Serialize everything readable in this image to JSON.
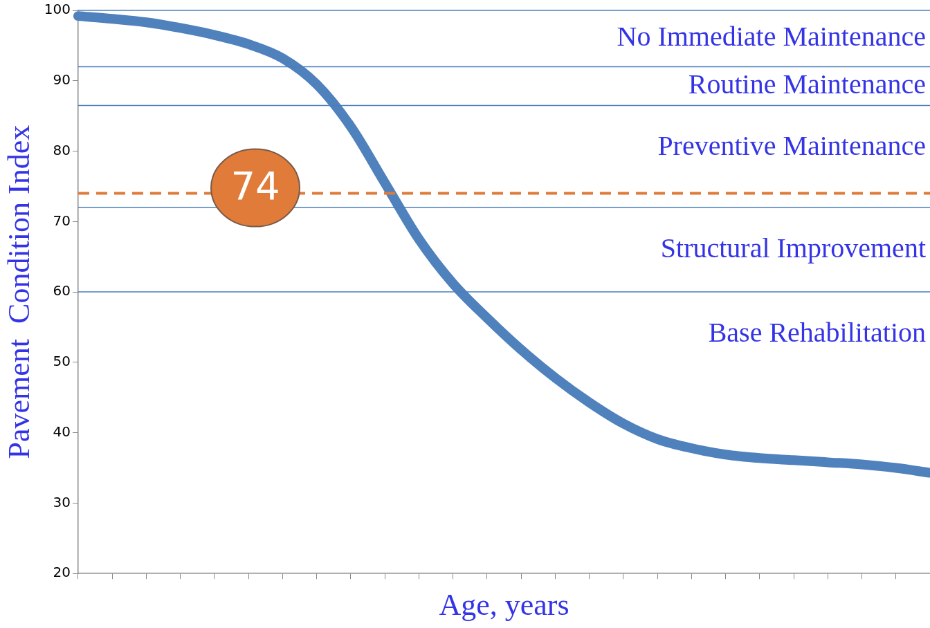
{
  "chart_data": {
    "type": "line",
    "xlabel": "Age, years",
    "ylabel": "Pavement  Condition Index",
    "categories": [
      null,
      null,
      null,
      null,
      null,
      null,
      null,
      null,
      null,
      null,
      null,
      null,
      null,
      null,
      null,
      null,
      null,
      null,
      null,
      null,
      null,
      null,
      null,
      null,
      null,
      null
    ],
    "series": [
      {
        "color": "#4f81bd",
        "values": [
          99.2,
          98.8,
          98.3,
          97.5,
          96.5,
          95.2,
          93.2,
          89.5,
          83.5,
          75.5,
          67.5,
          61.2,
          56.3,
          51.8,
          47.8,
          44.3,
          41.3,
          39.1,
          37.8,
          36.9,
          36.4,
          36.1,
          35.8,
          35.5,
          35.0,
          34.3
        ]
      }
    ],
    "ylim": [
      20,
      100
    ],
    "yticks": [
      20,
      30,
      40,
      50,
      60,
      70,
      80,
      90,
      100
    ],
    "tick_labels": "y",
    "marker": "none",
    "line_style": "solid",
    "grid": false,
    "legend": false,
    "annotations": [
      "No Immediate Maintenance",
      "Routine Maintenance",
      "Preventive Maintenance",
      "Structural Improvement",
      "Base Rehabilitation"
    ],
    "ref_lines": [
      {
        "axis": "y",
        "value": 100,
        "color": "#4a7ebb",
        "line_style": "solid"
      },
      {
        "axis": "y",
        "value": 92,
        "color": "#4a7ebb",
        "line_style": "solid"
      },
      {
        "axis": "y",
        "value": 86.5,
        "color": "#4a7ebb",
        "line_style": "solid"
      },
      {
        "axis": "y",
        "value": 72,
        "color": "#4a7ebb",
        "line_style": "solid"
      },
      {
        "axis": "y",
        "value": 60,
        "color": "#4a7ebb",
        "line_style": "solid"
      },
      {
        "axis": "y",
        "value": 74,
        "label": "74",
        "color": "#e07b39",
        "line_style": "dashed"
      }
    ]
  }
}
